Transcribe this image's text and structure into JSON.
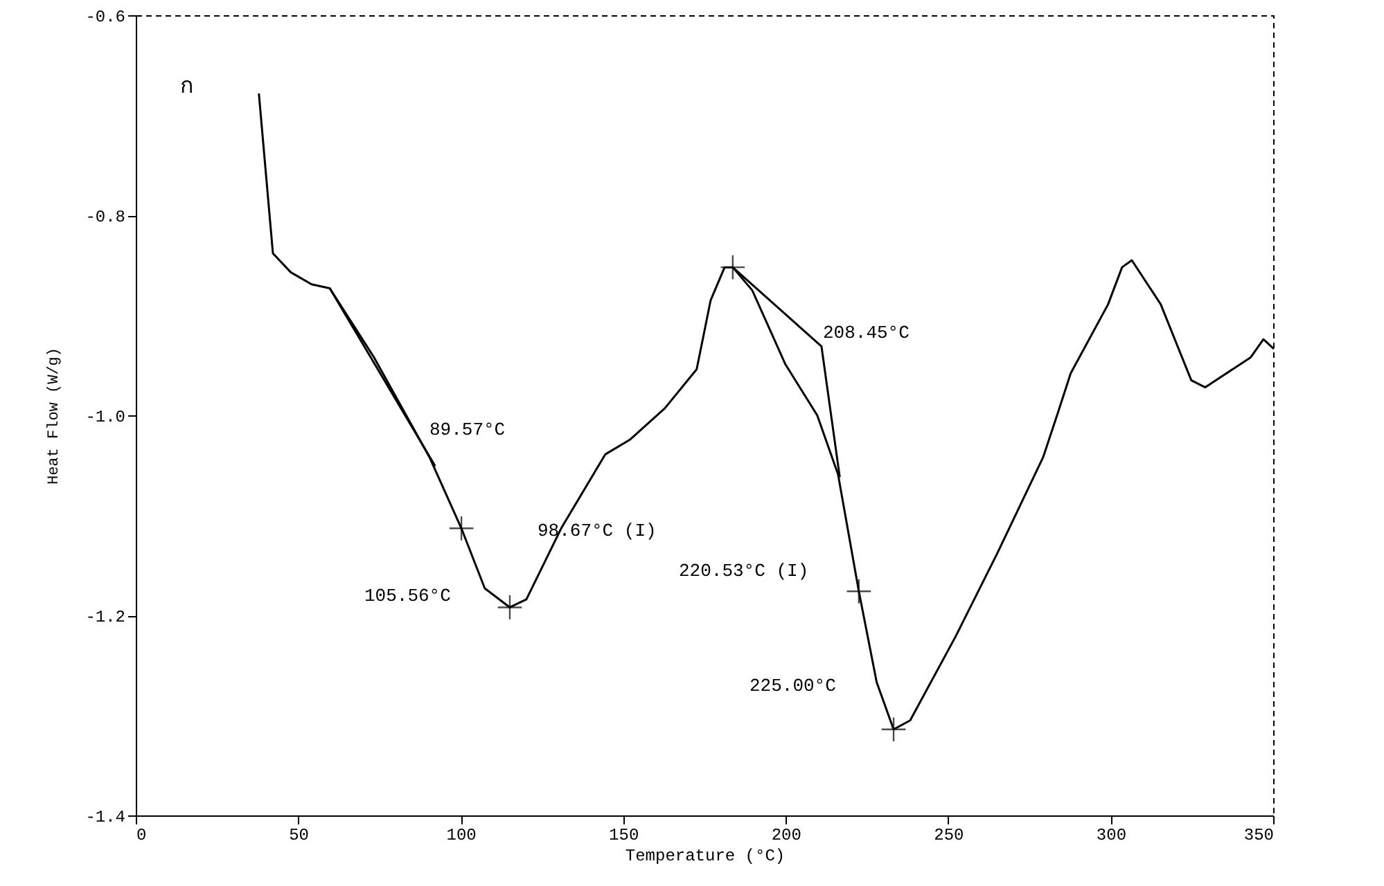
{
  "chart_data": {
    "type": "line",
    "xlabel": "Temperature (°C)",
    "ylabel": "Heat Flow (W/g)",
    "xlim": [
      0,
      350
    ],
    "xticks": [
      0,
      50,
      100,
      150,
      200,
      250,
      300,
      350
    ],
    "ylim": [
      -1.4,
      -0.6
    ],
    "yticks": [
      -1.4,
      -1.2,
      {
        "value": -1.0,
        "label": "-1.0"
      },
      -0.8,
      -0.6
    ],
    "grid": false,
    "series": [
      {
        "color": "#000000",
        "x": [
          37.9,
          42.2,
          47.7,
          54.1,
          59.7,
          73.3,
          90.4,
          100.2,
          107.4,
          115.1,
          120.2,
          130.9,
          144.5,
          152.2,
          162.8,
          172.6,
          176.9,
          181.2,
          183.7,
          189.7,
          199.9,
          209.7,
          216.1,
          222.5,
          228.0,
          233.2,
          238.3,
          252.3,
          265.1,
          279.2,
          283.5,
          287.7,
          299.2,
          303.5,
          306.5,
          315.4,
          324.8,
          329.1,
          343.1,
          347.0,
          350.0
        ],
        "values": [
          -0.679,
          -0.838,
          -0.857,
          -0.869,
          -0.873,
          -0.942,
          -1.042,
          -1.113,
          -1.173,
          -1.192,
          -1.184,
          -1.113,
          -1.039,
          -1.024,
          -0.993,
          -0.954,
          -0.885,
          -0.852,
          -0.852,
          -0.875,
          -0.949,
          -1.0,
          -1.059,
          -1.176,
          -1.267,
          -1.314,
          -1.305,
          -1.221,
          -1.138,
          -1.042,
          -1.0,
          -0.958,
          -0.889,
          -0.852,
          -0.845,
          -0.889,
          -0.965,
          -0.972,
          -0.942,
          -0.924,
          -0.933
        ]
      },
      {
        "type": "line",
        "color": "#000000",
        "x": [
          59.7,
          92.0
        ],
        "values": [
          -0.873,
          -1.05
        ]
      },
      {
        "type": "line",
        "color": "#000000",
        "x": [
          183.7,
          211.0,
          216.6
        ],
        "values": [
          -0.852,
          -0.931,
          -1.061
        ]
      },
      {
        "type": "scatter",
        "marker": "cross",
        "color": "#000000",
        "x": [
          100.2,
          115.1,
          183.7,
          222.5,
          233.2
        ],
        "values": [
          -1.113,
          -1.192,
          -0.852,
          -1.176,
          -1.314
        ]
      }
    ],
    "annotations": [
      "ก",
      "89.57°C",
      "98.67°C (I)",
      "105.56°C",
      "208.45°C",
      "220.53°C (I)",
      "225.00°C"
    ]
  }
}
